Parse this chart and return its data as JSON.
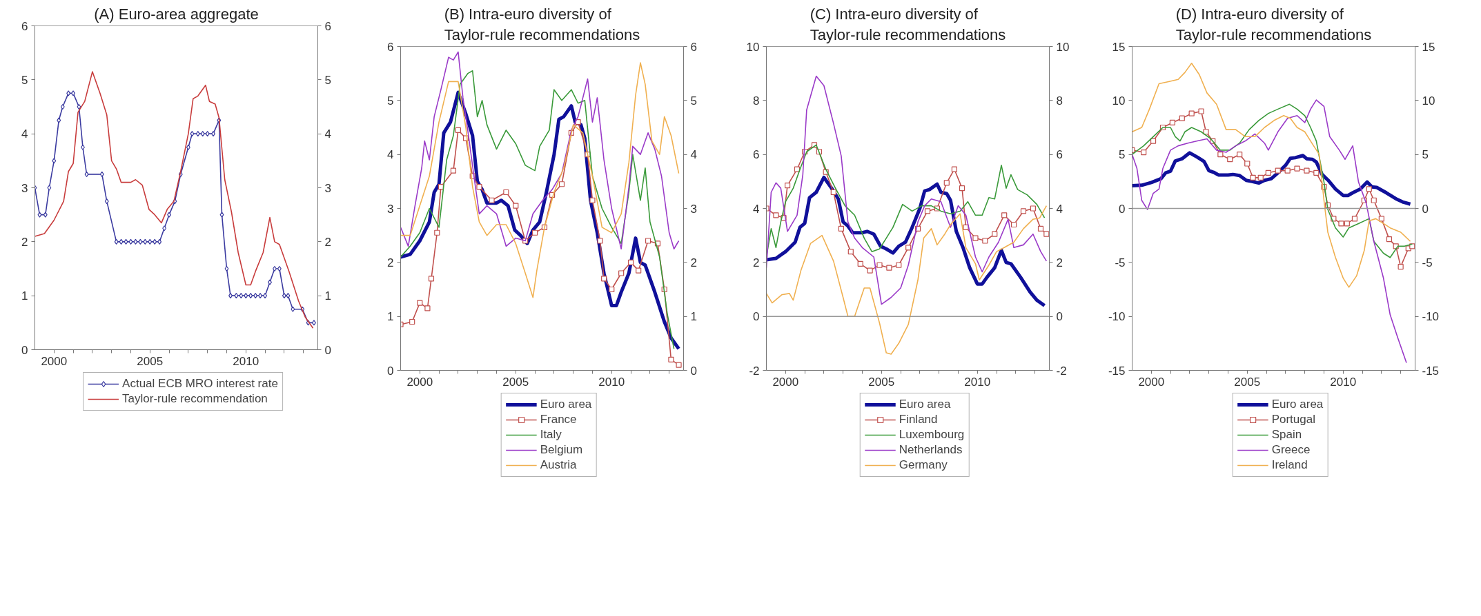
{
  "chart_data": [
    {
      "type": "line",
      "title": "(A) Euro-area aggregate",
      "legend": "bottom",
      "xlim": [
        1999,
        2013.75
      ],
      "xticks": [
        2000,
        {
          "value": 2001,
          "label": null
        },
        {
          "value": 2002,
          "label": null
        },
        {
          "value": 2003,
          "label": null
        },
        {
          "value": 2004,
          "label": null
        },
        2005,
        {
          "value": 2006,
          "label": null
        },
        {
          "value": 2007,
          "label": null
        },
        {
          "value": 2008,
          "label": null
        },
        {
          "value": 2009,
          "label": null
        },
        2010,
        {
          "value": 2011,
          "label": null
        },
        {
          "value": 2012,
          "label": null
        },
        {
          "value": 2013,
          "label": null
        }
      ],
      "ylim": [
        0,
        6
      ],
      "yticks": [
        0,
        1,
        2,
        3,
        4,
        5,
        6
      ],
      "y2lim": [
        0,
        6
      ],
      "y2ticks": [
        0,
        1,
        2,
        3,
        4,
        5,
        6
      ],
      "series": [
        {
          "name": "Actual ECB MRO interest rate",
          "color": "#3b3ba0",
          "marker": "diamond",
          "x": [
            1999.0,
            1999.25,
            1999.55,
            1999.75,
            2000.0,
            2000.25,
            2000.45,
            2000.75,
            2001.0,
            2001.3,
            2001.5,
            2001.7,
            2002.5,
            2002.75,
            2003.25,
            2003.5,
            2003.75,
            2004.0,
            2004.25,
            2004.5,
            2004.75,
            2005.0,
            2005.25,
            2005.5,
            2005.75,
            2006.0,
            2006.3,
            2006.6,
            2007.0,
            2007.2,
            2007.5,
            2007.75,
            2008.0,
            2008.3,
            2008.6,
            2008.75,
            2009.0,
            2009.2,
            2009.5,
            2009.75,
            2010.0,
            2010.25,
            2010.5,
            2010.75,
            2011.0,
            2011.25,
            2011.5,
            2011.75,
            2012.0,
            2012.2,
            2012.45,
            2012.95,
            2013.25,
            2013.55
          ],
          "values": [
            3.0,
            2.5,
            2.5,
            3.0,
            3.5,
            4.25,
            4.5,
            4.75,
            4.75,
            4.5,
            3.75,
            3.25,
            3.25,
            2.75,
            2.0,
            2.0,
            2.0,
            2.0,
            2.0,
            2.0,
            2.0,
            2.0,
            2.0,
            2.0,
            2.25,
            2.5,
            2.75,
            3.25,
            3.75,
            4.0,
            4.0,
            4.0,
            4.0,
            4.0,
            4.25,
            2.5,
            1.5,
            1.0,
            1.0,
            1.0,
            1.0,
            1.0,
            1.0,
            1.0,
            1.0,
            1.25,
            1.5,
            1.5,
            1.0,
            1.0,
            0.75,
            0.75,
            0.5,
            0.5
          ]
        },
        {
          "name": "Taylor-rule recommendation",
          "color": "#c83c3c",
          "x": [
            1999.0,
            1999.5,
            2000.0,
            2000.5,
            2000.75,
            2001.0,
            2001.25,
            2001.6,
            2002.0,
            2002.4,
            2002.75,
            2003.0,
            2003.25,
            2003.5,
            2004.0,
            2004.25,
            2004.6,
            2004.95,
            2005.25,
            2005.6,
            2005.9,
            2006.25,
            2006.6,
            2007.0,
            2007.25,
            2007.5,
            2007.9,
            2008.1,
            2008.4,
            2008.6,
            2008.9,
            2009.25,
            2009.6,
            2010.0,
            2010.25,
            2010.5,
            2010.9,
            2011.25,
            2011.5,
            2011.75,
            2012.25,
            2012.75,
            2013.1,
            2013.5
          ],
          "values": [
            2.1,
            2.15,
            2.4,
            2.75,
            3.3,
            3.45,
            4.4,
            4.6,
            5.15,
            4.75,
            4.35,
            3.5,
            3.35,
            3.1,
            3.1,
            3.15,
            3.05,
            2.6,
            2.5,
            2.35,
            2.6,
            2.75,
            3.3,
            4.0,
            4.65,
            4.7,
            4.9,
            4.6,
            4.55,
            4.3,
            3.15,
            2.55,
            1.8,
            1.2,
            1.2,
            1.45,
            1.8,
            2.45,
            2.0,
            1.95,
            1.45,
            0.9,
            0.6,
            0.4
          ]
        }
      ]
    },
    {
      "type": "line",
      "title": "(B) Intra-euro diversity of\nTaylor-rule recommendations",
      "legend": "bottom",
      "xlim": [
        1999,
        2013.75
      ],
      "xticks": [
        2000,
        {
          "value": 2001,
          "label": null
        },
        {
          "value": 2002,
          "label": null
        },
        {
          "value": 2003,
          "label": null
        },
        {
          "value": 2004,
          "label": null
        },
        2005,
        {
          "value": 2006,
          "label": null
        },
        {
          "value": 2007,
          "label": null
        },
        {
          "value": 2008,
          "label": null
        },
        {
          "value": 2009,
          "label": null
        },
        2010,
        {
          "value": 2011,
          "label": null
        },
        {
          "value": 2012,
          "label": null
        },
        {
          "value": 2013,
          "label": null
        }
      ],
      "ylim": [
        0,
        6
      ],
      "yticks": [
        0,
        1,
        2,
        3,
        4,
        5,
        6
      ],
      "y2lim": [
        0,
        6
      ],
      "y2ticks": [
        0,
        1,
        2,
        3,
        4,
        5,
        6
      ],
      "series": [
        {
          "name": "Euro area",
          "color": "#10109a",
          "x": [
            1999.0,
            1999.5,
            2000.0,
            2000.5,
            2000.75,
            2001.0,
            2001.25,
            2001.6,
            2002.0,
            2002.4,
            2002.75,
            2003.0,
            2003.25,
            2003.5,
            2004.0,
            2004.25,
            2004.6,
            2004.95,
            2005.25,
            2005.6,
            2005.9,
            2006.25,
            2006.6,
            2007.0,
            2007.25,
            2007.5,
            2007.9,
            2008.1,
            2008.4,
            2008.6,
            2008.9,
            2009.25,
            2009.6,
            2010.0,
            2010.25,
            2010.5,
            2010.9,
            2011.25,
            2011.5,
            2011.75,
            2012.25,
            2012.75,
            2013.1,
            2013.5
          ],
          "values": [
            2.1,
            2.15,
            2.4,
            2.75,
            3.3,
            3.45,
            4.4,
            4.6,
            5.15,
            4.75,
            4.35,
            3.5,
            3.35,
            3.1,
            3.1,
            3.15,
            3.05,
            2.6,
            2.5,
            2.35,
            2.6,
            2.75,
            3.3,
            4.0,
            4.65,
            4.7,
            4.9,
            4.6,
            4.55,
            4.3,
            3.15,
            2.55,
            1.8,
            1.2,
            1.2,
            1.45,
            1.8,
            2.45,
            2.0,
            1.95,
            1.45,
            0.9,
            0.6,
            0.4
          ]
        },
        {
          "name": "France",
          "color": "#c0504d",
          "marker": "square",
          "x": [
            1999.0,
            1999.6,
            2000.0,
            2000.4,
            2000.6,
            2000.9,
            2001.1,
            2001.75,
            2002.0,
            2002.4,
            2002.75,
            2003.1,
            2003.75,
            2004.5,
            2005.0,
            2005.5,
            2006.0,
            2006.5,
            2006.9,
            2007.4,
            2007.9,
            2008.25,
            2008.75,
            2009.0,
            2009.4,
            2009.6,
            2010.0,
            2010.5,
            2011.0,
            2011.4,
            2011.9,
            2012.4,
            2012.75,
            2013.1,
            2013.5
          ],
          "values": [
            0.85,
            0.9,
            1.25,
            1.15,
            1.7,
            2.55,
            3.4,
            3.7,
            4.45,
            4.3,
            3.6,
            3.4,
            3.15,
            3.3,
            3.05,
            2.4,
            2.55,
            2.65,
            3.25,
            3.45,
            4.4,
            4.6,
            4.0,
            3.15,
            2.4,
            1.7,
            1.5,
            1.8,
            2.0,
            1.85,
            2.4,
            2.35,
            1.5,
            0.2,
            0.1
          ]
        },
        {
          "name": "Italy",
          "color": "#3a9a3a",
          "x": [
            1999.0,
            1999.5,
            2000.0,
            2000.5,
            2001.0,
            2001.4,
            2001.75,
            2002.1,
            2002.5,
            2002.75,
            2003.0,
            2003.25,
            2003.5,
            2004.0,
            2004.5,
            2005.0,
            2005.5,
            2006.0,
            2006.25,
            2006.75,
            2007.0,
            2007.4,
            2007.9,
            2008.25,
            2008.6,
            2009.0,
            2009.5,
            2010.0,
            2010.5,
            2010.9,
            2011.1,
            2011.5,
            2011.75,
            2012.0,
            2012.5,
            2012.9,
            2013.25
          ],
          "values": [
            2.1,
            2.3,
            2.55,
            3.0,
            2.65,
            3.9,
            4.35,
            5.3,
            5.5,
            5.55,
            4.7,
            5.0,
            4.55,
            4.1,
            4.45,
            4.2,
            3.8,
            3.7,
            4.15,
            4.45,
            5.2,
            5.0,
            5.2,
            4.95,
            5.0,
            3.6,
            3.0,
            2.65,
            2.35,
            3.3,
            4.0,
            3.15,
            3.75,
            2.75,
            2.1,
            1.05,
            0.4
          ]
        },
        {
          "name": "Belgium",
          "color": "#9a3ac8",
          "x": [
            1999.0,
            1999.4,
            1999.75,
            2000.1,
            2000.25,
            2000.5,
            2000.75,
            2001.1,
            2001.5,
            2001.75,
            2002.0,
            2002.25,
            2002.5,
            2002.9,
            2003.1,
            2003.5,
            2004.0,
            2004.5,
            2005.0,
            2005.5,
            2005.9,
            2006.4,
            2006.9,
            2007.4,
            2007.9,
            2008.25,
            2008.75,
            2009.0,
            2009.25,
            2009.6,
            2010.0,
            2010.5,
            2010.9,
            2011.1,
            2011.5,
            2011.9,
            2012.25,
            2012.6,
            2013.0,
            2013.25,
            2013.5
          ],
          "values": [
            2.65,
            2.3,
            3.05,
            3.75,
            4.25,
            3.9,
            4.7,
            5.2,
            5.8,
            5.75,
            5.9,
            5.05,
            4.45,
            3.4,
            2.9,
            3.05,
            2.9,
            2.3,
            2.45,
            2.4,
            2.9,
            3.15,
            3.35,
            3.65,
            4.45,
            4.7,
            5.4,
            4.6,
            5.05,
            3.9,
            3.0,
            2.25,
            3.4,
            4.15,
            4.0,
            4.4,
            4.1,
            3.6,
            2.55,
            2.25,
            2.4
          ]
        },
        {
          "name": "Austria",
          "color": "#f0b050",
          "x": [
            1999.0,
            1999.5,
            2000.0,
            2000.5,
            2001.0,
            2001.5,
            2002.0,
            2002.4,
            2002.75,
            2003.1,
            2003.5,
            2004.0,
            2004.5,
            2005.0,
            2005.5,
            2005.9,
            2006.1,
            2006.5,
            2007.0,
            2007.5,
            2008.0,
            2008.5,
            2009.0,
            2009.5,
            2010.0,
            2010.5,
            2010.9,
            2011.25,
            2011.5,
            2011.75,
            2012.1,
            2012.5,
            2012.75,
            2013.1,
            2013.5
          ],
          "values": [
            2.5,
            2.5,
            3.05,
            3.6,
            4.6,
            5.35,
            5.35,
            4.5,
            3.4,
            2.75,
            2.5,
            2.7,
            2.7,
            2.35,
            1.8,
            1.35,
            1.85,
            2.65,
            3.3,
            3.75,
            4.55,
            4.4,
            3.6,
            2.65,
            2.55,
            2.9,
            3.85,
            5.1,
            5.7,
            5.3,
            4.25,
            4.0,
            4.7,
            4.35,
            3.65
          ]
        }
      ]
    },
    {
      "type": "line",
      "title": "(C) Intra-euro diversity of\nTaylor-rule recommendations",
      "legend": "bottom",
      "xlim": [
        1999,
        2013.75
      ],
      "xticks": [
        2000,
        {
          "value": 2001,
          "label": null
        },
        {
          "value": 2002,
          "label": null
        },
        {
          "value": 2003,
          "label": null
        },
        {
          "value": 2004,
          "label": null
        },
        2005,
        {
          "value": 2006,
          "label": null
        },
        {
          "value": 2007,
          "label": null
        },
        {
          "value": 2008,
          "label": null
        },
        {
          "value": 2009,
          "label": null
        },
        2010,
        {
          "value": 2011,
          "label": null
        },
        {
          "value": 2012,
          "label": null
        },
        {
          "value": 2013,
          "label": null
        }
      ],
      "ylim": [
        -2,
        10
      ],
      "yticks": [
        -2,
        0,
        2,
        4,
        6,
        8,
        10
      ],
      "y2lim": [
        -2,
        10
      ],
      "y2ticks": [
        -2,
        0,
        2,
        4,
        6,
        8,
        10
      ],
      "ref_lines": [
        {
          "axis": "y",
          "value": 0,
          "color": "#999999"
        }
      ],
      "series": [
        {
          "name": "Euro area",
          "color": "#10109a",
          "x": [
            1999.0,
            1999.5,
            2000.0,
            2000.5,
            2000.75,
            2001.0,
            2001.25,
            2001.6,
            2002.0,
            2002.4,
            2002.75,
            2003.0,
            2003.25,
            2003.5,
            2004.0,
            2004.25,
            2004.6,
            2004.95,
            2005.25,
            2005.6,
            2005.9,
            2006.25,
            2006.6,
            2007.0,
            2007.25,
            2007.5,
            2007.9,
            2008.1,
            2008.4,
            2008.6,
            2008.9,
            2009.25,
            2009.6,
            2010.0,
            2010.25,
            2010.5,
            2010.9,
            2011.25,
            2011.5,
            2011.75,
            2012.25,
            2012.75,
            2013.1,
            2013.5
          ],
          "values": [
            2.1,
            2.15,
            2.4,
            2.75,
            3.3,
            3.45,
            4.4,
            4.6,
            5.15,
            4.75,
            4.35,
            3.5,
            3.35,
            3.1,
            3.1,
            3.15,
            3.05,
            2.6,
            2.5,
            2.35,
            2.6,
            2.75,
            3.3,
            4.0,
            4.65,
            4.7,
            4.9,
            4.6,
            4.55,
            4.3,
            3.15,
            2.55,
            1.8,
            1.2,
            1.2,
            1.45,
            1.8,
            2.45,
            2.0,
            1.95,
            1.45,
            0.9,
            0.6,
            0.4
          ]
        },
        {
          "name": "Finland",
          "color": "#c0504d",
          "marker": "square",
          "x": [
            1999.0,
            1999.5,
            1999.9,
            2000.1,
            2000.6,
            2001.0,
            2001.5,
            2001.75,
            2002.1,
            2002.5,
            2002.9,
            2003.4,
            2003.9,
            2004.4,
            2004.9,
            2005.4,
            2005.9,
            2006.4,
            2006.9,
            2007.4,
            2007.9,
            2008.4,
            2008.8,
            2009.2,
            2009.4,
            2009.9,
            2010.4,
            2010.9,
            2011.4,
            2011.9,
            2012.4,
            2012.9,
            2013.3,
            2013.6
          ],
          "values": [
            4.0,
            3.75,
            3.65,
            4.85,
            5.45,
            6.1,
            6.35,
            6.1,
            5.35,
            4.6,
            3.25,
            2.4,
            1.95,
            1.7,
            1.9,
            1.8,
            1.9,
            2.55,
            3.25,
            3.9,
            4.0,
            4.95,
            5.45,
            4.75,
            3.3,
            2.9,
            2.8,
            3.05,
            3.75,
            3.4,
            3.9,
            4.0,
            3.25,
            3.05
          ]
        },
        {
          "name": "Luxembourg",
          "color": "#3a9a3a",
          "x": [
            1999.0,
            1999.25,
            1999.5,
            1999.75,
            2000.0,
            2000.4,
            2000.75,
            2001.1,
            2001.6,
            2002.1,
            2002.6,
            2003.1,
            2003.6,
            2004.1,
            2004.5,
            2004.9,
            2005.25,
            2005.6,
            2006.1,
            2006.6,
            2007.1,
            2007.6,
            2008.1,
            2008.6,
            2009.1,
            2009.5,
            2009.9,
            2010.25,
            2010.6,
            2010.9,
            2011.25,
            2011.5,
            2011.75,
            2012.1,
            2012.6,
            2013.1,
            2013.5
          ],
          "values": [
            2.2,
            3.25,
            2.55,
            3.5,
            4.25,
            4.75,
            5.45,
            6.1,
            6.35,
            5.45,
            4.75,
            4.1,
            3.75,
            2.9,
            2.4,
            2.5,
            2.9,
            3.3,
            4.15,
            3.9,
            4.1,
            4.1,
            3.9,
            3.8,
            3.9,
            4.25,
            3.75,
            3.75,
            4.4,
            4.35,
            5.6,
            4.75,
            5.25,
            4.7,
            4.5,
            4.15,
            3.65
          ]
        },
        {
          "name": "Netherlands",
          "color": "#9a3ac8",
          "x": [
            1999.0,
            1999.25,
            1999.5,
            1999.75,
            2000.1,
            2000.6,
            2000.9,
            2001.1,
            2001.6,
            2002.0,
            2002.5,
            2002.9,
            2003.25,
            2003.6,
            2004.0,
            2004.6,
            2005.0,
            2005.5,
            2006.0,
            2006.4,
            2006.9,
            2007.25,
            2007.6,
            2008.1,
            2008.6,
            2009.0,
            2009.4,
            2009.9,
            2010.25,
            2010.6,
            2011.1,
            2011.6,
            2011.9,
            2012.4,
            2012.9,
            2013.3,
            2013.6
          ],
          "values": [
            1.8,
            4.6,
            4.95,
            4.75,
            3.15,
            3.75,
            5.25,
            7.65,
            8.9,
            8.55,
            7.15,
            5.95,
            3.5,
            2.9,
            2.55,
            2.2,
            0.45,
            0.7,
            1.05,
            1.9,
            3.5,
            4.1,
            4.35,
            4.25,
            3.3,
            4.1,
            3.75,
            2.2,
            1.65,
            2.2,
            2.75,
            3.6,
            2.55,
            2.65,
            3.05,
            2.4,
            2.05
          ]
        },
        {
          "name": "Germany",
          "color": "#f0b050",
          "x": [
            1999.0,
            1999.3,
            1999.8,
            2000.2,
            2000.4,
            2000.8,
            2001.3,
            2001.9,
            2002.5,
            2003.0,
            2003.25,
            2003.6,
            2004.1,
            2004.4,
            2004.9,
            2005.25,
            2005.5,
            2005.9,
            2006.4,
            2006.9,
            2007.2,
            2007.6,
            2007.9,
            2008.3,
            2008.6,
            2009.1,
            2009.4,
            2009.9,
            2010.1,
            2010.6,
            2011.0,
            2011.4,
            2011.9,
            2012.4,
            2012.9,
            2013.25,
            2013.6
          ],
          "values": [
            0.85,
            0.5,
            0.8,
            0.85,
            0.6,
            1.7,
            2.7,
            3.0,
            2.05,
            0.7,
            0.0,
            0.0,
            1.05,
            1.05,
            -0.25,
            -1.35,
            -1.4,
            -1.0,
            -0.3,
            1.35,
            2.9,
            3.25,
            2.65,
            3.05,
            3.4,
            3.8,
            2.55,
            1.95,
            1.35,
            1.9,
            2.4,
            2.55,
            2.75,
            3.25,
            3.6,
            3.65,
            4.1
          ]
        }
      ]
    },
    {
      "type": "line",
      "title": "(D) Intra-euro diversity of\nTaylor-rule recommendations",
      "legend": "bottom",
      "xlim": [
        1999,
        2013.75
      ],
      "xticks": [
        2000,
        {
          "value": 2001,
          "label": null
        },
        {
          "value": 2002,
          "label": null
        },
        {
          "value": 2003,
          "label": null
        },
        {
          "value": 2004,
          "label": null
        },
        2005,
        {
          "value": 2006,
          "label": null
        },
        {
          "value": 2007,
          "label": null
        },
        {
          "value": 2008,
          "label": null
        },
        {
          "value": 2009,
          "label": null
        },
        2010,
        {
          "value": 2011,
          "label": null
        },
        {
          "value": 2012,
          "label": null
        },
        {
          "value": 2013,
          "label": null
        }
      ],
      "ylim": [
        -15,
        15
      ],
      "yticks": [
        -15,
        -10,
        -5,
        0,
        5,
        10,
        15
      ],
      "y2lim": [
        -15,
        15
      ],
      "y2ticks": [
        -15,
        -10,
        -5,
        0,
        5,
        10,
        15
      ],
      "ref_lines": [
        {
          "axis": "y",
          "value": 0,
          "color": "#999999"
        }
      ],
      "series": [
        {
          "name": "Euro area",
          "color": "#10109a",
          "x": [
            1999.0,
            1999.5,
            2000.0,
            2000.5,
            2000.75,
            2001.0,
            2001.25,
            2001.6,
            2002.0,
            2002.4,
            2002.75,
            2003.0,
            2003.25,
            2003.5,
            2004.0,
            2004.25,
            2004.6,
            2004.95,
            2005.25,
            2005.6,
            2005.9,
            2006.25,
            2006.6,
            2007.0,
            2007.25,
            2007.5,
            2007.9,
            2008.1,
            2008.4,
            2008.6,
            2008.9,
            2009.25,
            2009.6,
            2010.0,
            2010.25,
            2010.5,
            2010.9,
            2011.25,
            2011.5,
            2011.75,
            2012.25,
            2012.75,
            2013.1,
            2013.5
          ],
          "values": [
            2.1,
            2.15,
            2.4,
            2.75,
            3.3,
            3.45,
            4.4,
            4.6,
            5.15,
            4.75,
            4.35,
            3.5,
            3.35,
            3.1,
            3.1,
            3.15,
            3.05,
            2.6,
            2.5,
            2.35,
            2.6,
            2.75,
            3.3,
            4.0,
            4.65,
            4.7,
            4.9,
            4.6,
            4.55,
            4.3,
            3.15,
            2.55,
            1.8,
            1.2,
            1.2,
            1.45,
            1.8,
            2.45,
            2.0,
            1.95,
            1.45,
            0.9,
            0.6,
            0.4
          ]
        },
        {
          "name": "Portugal",
          "color": "#c0504d",
          "marker": "square",
          "x": [
            1999.0,
            1999.6,
            2000.1,
            2000.6,
            2001.1,
            2001.6,
            2002.1,
            2002.6,
            2002.85,
            2003.2,
            2003.6,
            2004.1,
            2004.6,
            2005.0,
            2005.3,
            2005.7,
            2006.1,
            2006.6,
            2007.1,
            2007.6,
            2008.1,
            2008.6,
            2009.0,
            2009.2,
            2009.5,
            2009.9,
            2010.2,
            2010.6,
            2011.1,
            2011.35,
            2011.6,
            2012.0,
            2012.4,
            2012.75,
            2013.0,
            2013.4,
            2013.6
          ],
          "values": [
            5.4,
            5.2,
            6.25,
            7.5,
            7.95,
            8.35,
            8.8,
            9.0,
            7.1,
            6.25,
            5.0,
            4.55,
            5.0,
            4.15,
            2.85,
            2.85,
            3.3,
            3.5,
            3.5,
            3.7,
            3.5,
            3.3,
            2.0,
            0.3,
            -0.95,
            -1.4,
            -1.4,
            -0.95,
            0.75,
            1.8,
            0.75,
            -0.95,
            -2.85,
            -3.5,
            -5.4,
            -3.7,
            -3.5
          ]
        },
        {
          "name": "Spain",
          "color": "#3a9a3a",
          "x": [
            1999.0,
            1999.6,
            2000.1,
            2000.6,
            2001.0,
            2001.25,
            2001.5,
            2001.75,
            2002.1,
            2002.6,
            2003.1,
            2003.6,
            2004.1,
            2004.6,
            2005.1,
            2005.6,
            2006.1,
            2006.6,
            2007.2,
            2007.6,
            2008.0,
            2008.3,
            2008.6,
            2009.0,
            2009.2,
            2009.6,
            2010.0,
            2010.3,
            2010.8,
            2011.35,
            2011.6,
            2012.1,
            2012.45,
            2012.85,
            2013.2,
            2013.6
          ],
          "values": [
            5.0,
            5.8,
            6.65,
            7.5,
            7.5,
            6.65,
            6.25,
            7.1,
            7.5,
            7.1,
            6.45,
            5.4,
            5.4,
            6.05,
            7.3,
            8.15,
            8.8,
            9.2,
            9.65,
            9.2,
            8.6,
            7.5,
            6.25,
            2.45,
            -0.1,
            -1.8,
            -2.65,
            -1.8,
            -1.4,
            -0.95,
            -3.05,
            -4.15,
            -4.55,
            -3.5,
            -3.5,
            -3.3
          ]
        },
        {
          "name": "Greece",
          "color": "#9a3ac8",
          "x": [
            1999.0,
            1999.25,
            1999.5,
            1999.8,
            2000.1,
            2000.4,
            2000.6,
            2001.0,
            2001.4,
            2001.9,
            2002.4,
            2002.9,
            2003.4,
            2003.9,
            2004.4,
            2004.9,
            2005.4,
            2005.9,
            2006.1,
            2006.6,
            2007.1,
            2007.6,
            2008.0,
            2008.3,
            2008.6,
            2009.0,
            2009.3,
            2009.8,
            2010.1,
            2010.5,
            2010.8,
            2011.2,
            2011.6,
            2012.1,
            2012.45,
            2012.85,
            2013.3
          ],
          "values": [
            5.0,
            3.7,
            0.75,
            -0.1,
            1.4,
            1.8,
            3.7,
            5.4,
            5.8,
            6.05,
            6.25,
            6.45,
            5.4,
            5.2,
            5.8,
            6.25,
            6.9,
            6.05,
            5.4,
            7.1,
            8.35,
            8.6,
            7.95,
            9.2,
            10.05,
            9.45,
            6.65,
            5.4,
            4.55,
            5.8,
            2.45,
            0.5,
            -3.05,
            -6.45,
            -9.85,
            -12.0,
            -14.3
          ]
        },
        {
          "name": "Ireland",
          "color": "#f0b050",
          "x": [
            1999.0,
            1999.5,
            1999.9,
            2000.4,
            2000.9,
            2001.4,
            2001.75,
            2002.1,
            2002.5,
            2002.9,
            2003.4,
            2003.9,
            2004.4,
            2004.9,
            2005.4,
            2005.9,
            2006.4,
            2006.9,
            2007.25,
            2007.6,
            2008.0,
            2008.3,
            2008.75,
            2009.0,
            2009.2,
            2009.6,
            2010.0,
            2010.3,
            2010.7,
            2011.1,
            2011.35,
            2011.7,
            2012.1,
            2012.45,
            2013.0,
            2013.5
          ],
          "values": [
            7.1,
            7.5,
            9.2,
            11.55,
            11.75,
            11.95,
            12.6,
            13.45,
            12.4,
            10.7,
            9.65,
            7.3,
            7.3,
            6.65,
            6.65,
            7.5,
            8.15,
            8.6,
            8.35,
            7.5,
            7.1,
            6.25,
            5.0,
            0.75,
            -2.2,
            -4.55,
            -6.45,
            -7.3,
            -6.25,
            -3.9,
            -1.15,
            -0.95,
            -1.4,
            -1.8,
            -2.2,
            -3.05
          ]
        }
      ]
    }
  ]
}
